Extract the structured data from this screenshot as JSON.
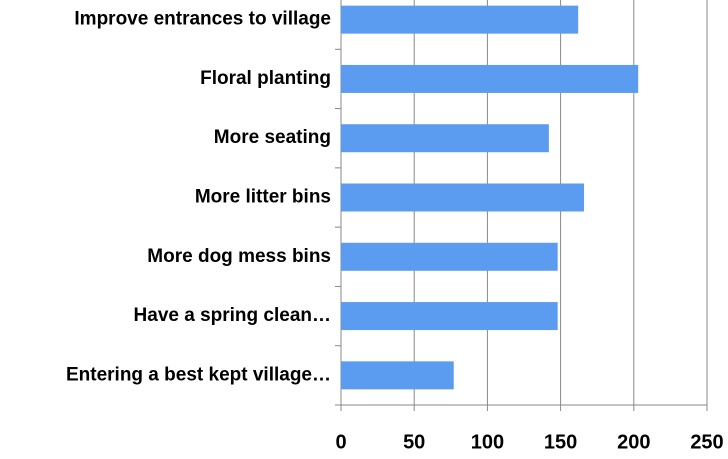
{
  "chart_data": {
    "type": "bar",
    "orientation": "horizontal",
    "categories": [
      "Improve entrances to village",
      "Floral planting",
      "More seating",
      "More litter bins",
      "More dog mess bins",
      "Have a spring clean…",
      "Entering a best kept village…"
    ],
    "values": [
      162,
      203,
      142,
      166,
      148,
      148,
      77
    ],
    "color": "#5b9bf0",
    "xlim": [
      0,
      250
    ],
    "xticks": [
      0,
      50,
      100,
      150,
      200,
      250
    ],
    "grid": true
  }
}
